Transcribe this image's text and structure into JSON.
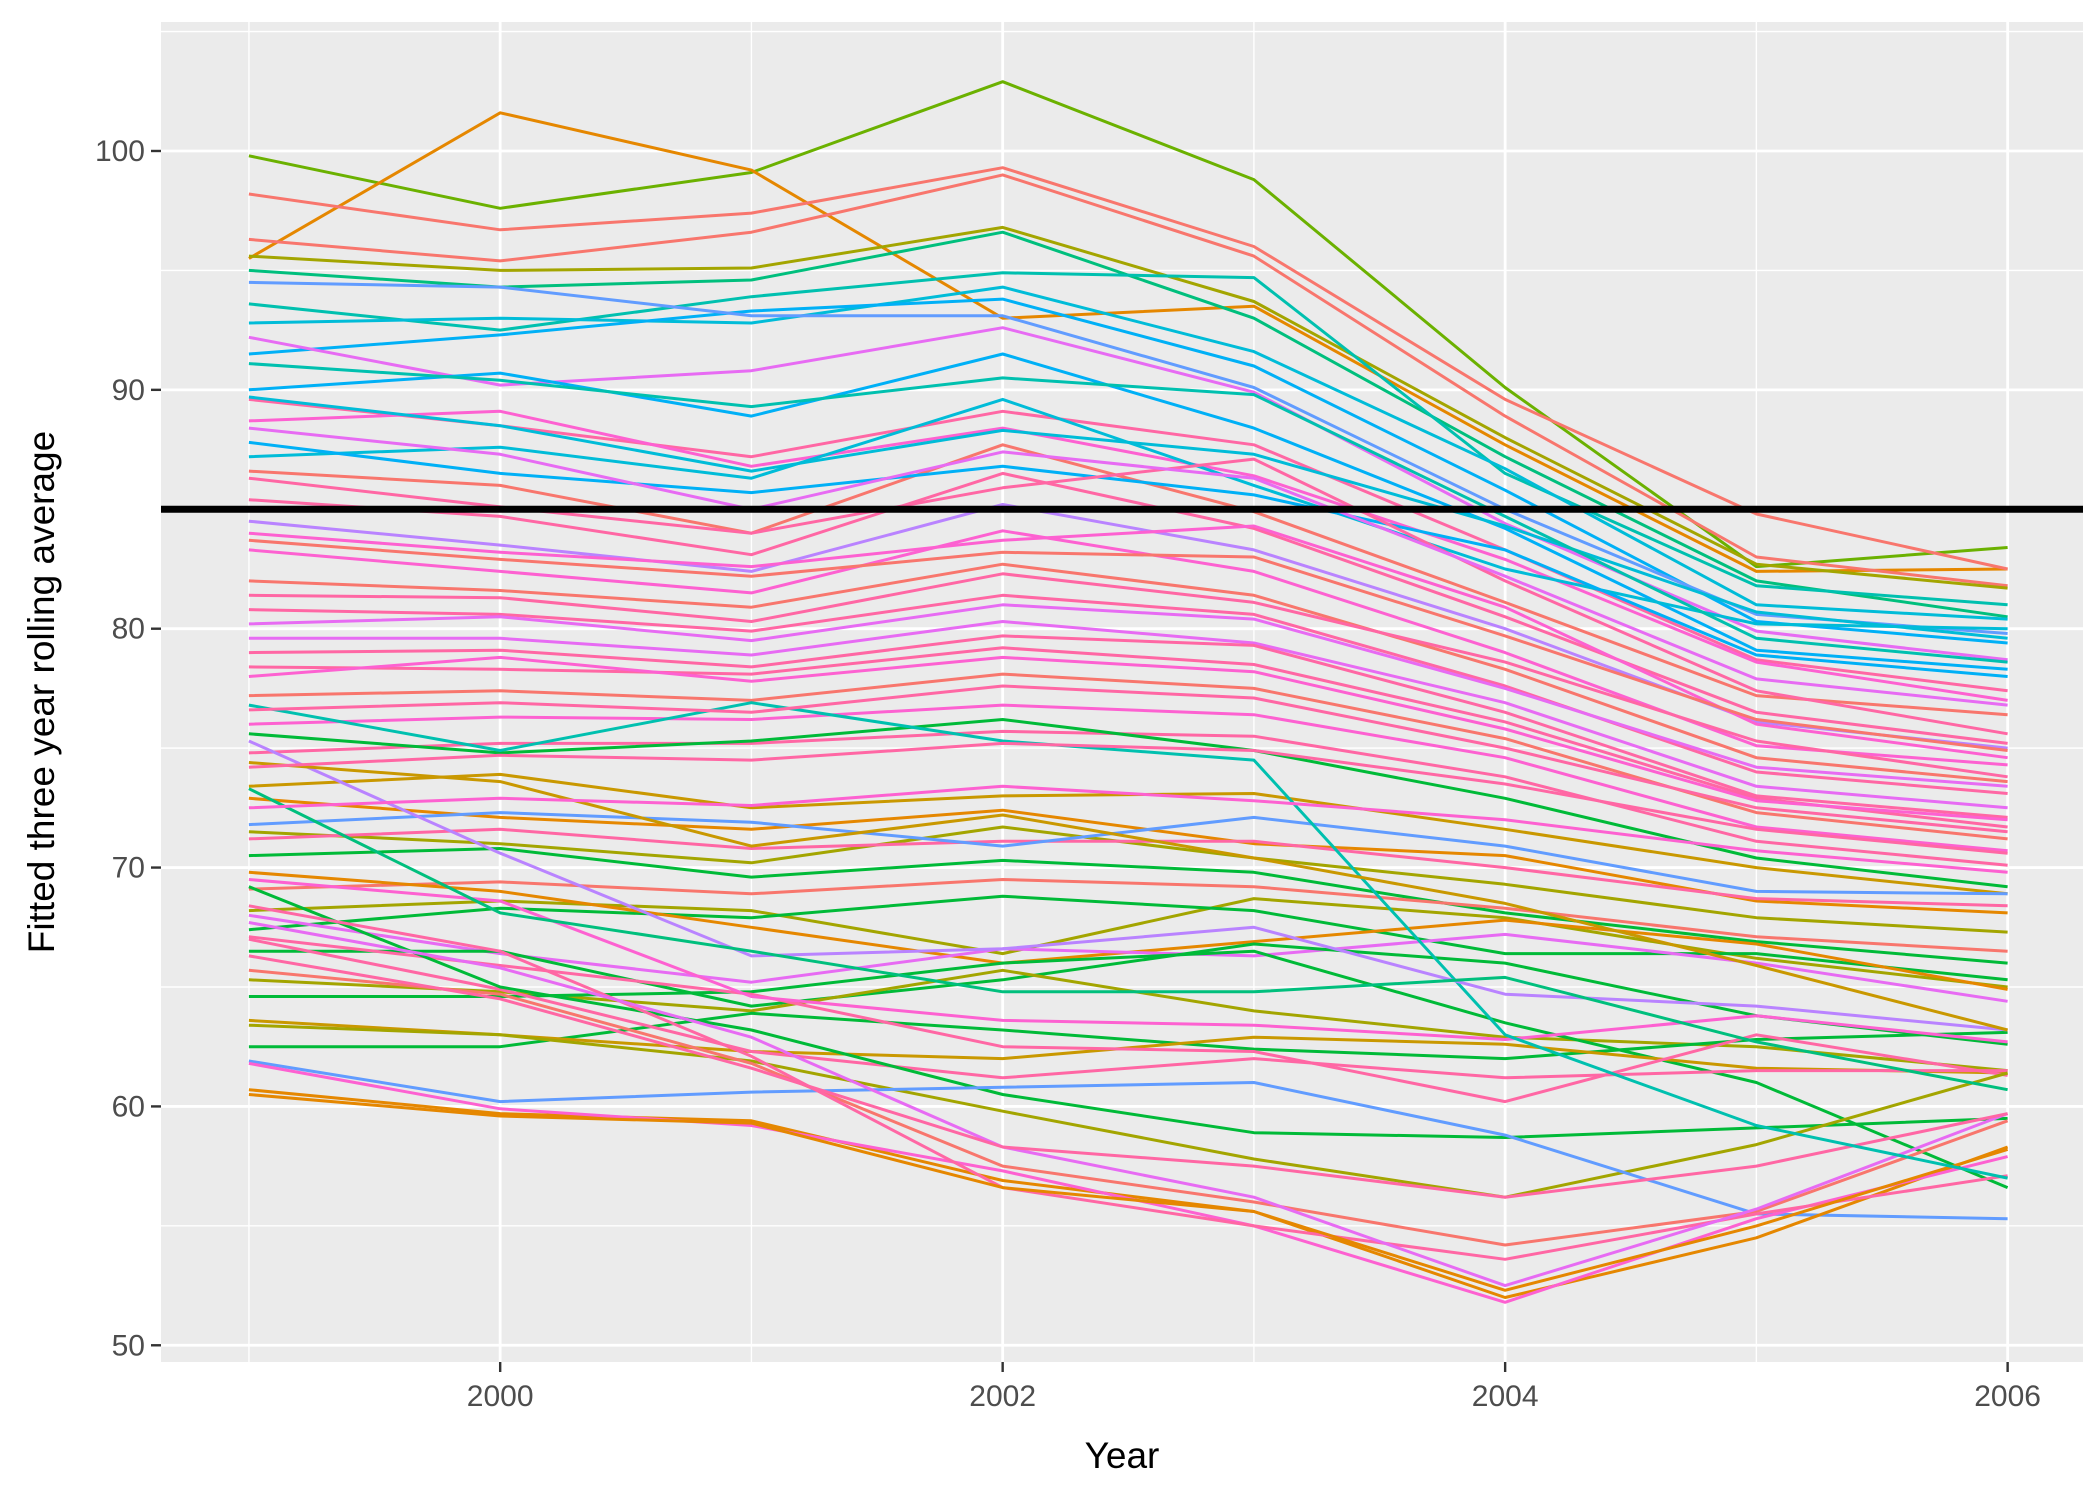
{
  "chart_data": {
    "type": "line",
    "title": "",
    "xlabel": "Year",
    "ylabel": "Fitted three year rolling average",
    "x": [
      1999,
      2000,
      2001,
      2002,
      2003,
      2004,
      2005,
      2006
    ],
    "xlim": [
      1998.65,
      2006.3
    ],
    "ylim": [
      49.3,
      105.4
    ],
    "x_ticks": [
      2000,
      2002,
      2004,
      2006
    ],
    "x_tick_labels": [
      "2000",
      "2002",
      "2004",
      "2006"
    ],
    "y_ticks": [
      50,
      60,
      70,
      80,
      90,
      100
    ],
    "y_tick_labels": [
      "50",
      "60",
      "70",
      "80",
      "90",
      "100"
    ],
    "grid": true,
    "legend": "none",
    "background": "#ebebeb",
    "grid_color": "#ffffff",
    "reference_line": {
      "y": 85,
      "color": "#000000"
    },
    "palette": [
      "#F8766D",
      "#E58700",
      "#C99800",
      "#A3A500",
      "#6BB100",
      "#00BA38",
      "#00BF7D",
      "#00C0AF",
      "#00BCD8",
      "#00B0F6",
      "#619CFF",
      "#B983FF",
      "#E76BF3",
      "#FD61D1",
      "#FF67A4"
    ],
    "series": [
      {
        "color": "#6BB100",
        "values": [
          99.8,
          97.6,
          99.1,
          102.9,
          98.8,
          90.1,
          82.6,
          83.4
        ]
      },
      {
        "color": "#E58700",
        "values": [
          95.5,
          101.6,
          99.2,
          93.0,
          93.5,
          87.7,
          82.4,
          82.5
        ]
      },
      {
        "color": "#F8766D",
        "values": [
          98.2,
          96.7,
          97.4,
          99.3,
          96.0,
          89.6,
          84.8,
          82.5
        ]
      },
      {
        "color": "#F8766D",
        "values": [
          96.3,
          95.4,
          96.6,
          99.0,
          95.6,
          88.9,
          83.0,
          81.8
        ]
      },
      {
        "color": "#A3A500",
        "values": [
          95.6,
          95.0,
          95.1,
          96.8,
          93.7,
          88.0,
          82.7,
          81.7
        ]
      },
      {
        "color": "#00BF7D",
        "values": [
          95.0,
          94.3,
          94.6,
          96.6,
          93.0,
          87.2,
          82.0,
          80.5
        ]
      },
      {
        "color": "#00C0AF",
        "values": [
          93.6,
          92.5,
          93.9,
          94.9,
          94.7,
          86.5,
          81.8,
          81.0
        ]
      },
      {
        "color": "#00BCD8",
        "values": [
          92.8,
          93.0,
          92.8,
          94.3,
          91.6,
          86.7,
          81.0,
          80.4
        ]
      },
      {
        "color": "#00B0F6",
        "values": [
          91.5,
          92.3,
          93.3,
          93.8,
          91.0,
          85.8,
          80.3,
          79.4
        ]
      },
      {
        "color": "#619CFF",
        "values": [
          94.5,
          94.3,
          93.1,
          93.1,
          90.1,
          85.0,
          80.6,
          79.8
        ]
      },
      {
        "color": "#E76BF3",
        "values": [
          92.2,
          90.2,
          90.8,
          92.6,
          89.9,
          84.4,
          79.9,
          78.7
        ]
      },
      {
        "color": "#00B0F6",
        "values": [
          90.0,
          90.7,
          88.9,
          91.5,
          88.4,
          84.2,
          79.1,
          78.3
        ]
      },
      {
        "color": "#FF67A4",
        "values": [
          89.6,
          88.5,
          87.2,
          89.1,
          87.7,
          83.3,
          78.7,
          77.4
        ]
      },
      {
        "color": "#FD61D1",
        "values": [
          88.7,
          89.1,
          86.8,
          88.4,
          86.4,
          82.9,
          78.6,
          77.0
        ]
      },
      {
        "color": "#00BCD8",
        "values": [
          87.2,
          87.6,
          86.3,
          89.6,
          86.0,
          82.5,
          80.2,
          80.0
        ]
      },
      {
        "color": "#F8766D",
        "values": [
          86.6,
          86.0,
          84.0,
          87.7,
          84.9,
          81.1,
          77.2,
          76.4
        ]
      },
      {
        "color": "#FF67A4",
        "values": [
          85.4,
          84.7,
          83.1,
          86.5,
          84.2,
          80.5,
          76.5,
          75.2
        ]
      },
      {
        "color": "#B983FF",
        "values": [
          84.5,
          83.5,
          82.4,
          85.2,
          83.3,
          80.0,
          76.1,
          75.0
        ]
      },
      {
        "color": "#FD61D1",
        "values": [
          83.3,
          82.4,
          81.5,
          84.1,
          82.4,
          79.0,
          75.1,
          74.3
        ]
      },
      {
        "color": "#F8766D",
        "values": [
          82.0,
          81.6,
          80.9,
          82.7,
          81.4,
          78.3,
          74.6,
          73.6
        ]
      },
      {
        "color": "#FF67A4",
        "values": [
          80.8,
          80.6,
          79.9,
          81.4,
          80.6,
          77.6,
          74.0,
          73.1
        ]
      },
      {
        "color": "#E76BF3",
        "values": [
          79.6,
          79.6,
          78.9,
          80.3,
          79.4,
          76.9,
          73.4,
          72.5
        ]
      },
      {
        "color": "#FF67A4",
        "values": [
          78.4,
          78.3,
          78.1,
          79.2,
          78.5,
          76.1,
          72.9,
          71.7
        ]
      },
      {
        "color": "#F8766D",
        "values": [
          77.2,
          77.4,
          77.0,
          78.1,
          77.5,
          75.4,
          72.3,
          71.2
        ]
      },
      {
        "color": "#FD61D1",
        "values": [
          76.0,
          76.3,
          76.2,
          76.8,
          76.4,
          74.6,
          71.7,
          70.7
        ]
      },
      {
        "color": "#FF67A4",
        "values": [
          74.8,
          75.2,
          75.2,
          75.7,
          75.5,
          73.8,
          71.1,
          70.1
        ]
      },
      {
        "color": "#00BA38",
        "values": [
          75.6,
          74.8,
          75.3,
          76.2,
          74.9,
          72.9,
          70.4,
          69.2
        ]
      },
      {
        "color": "#C99800",
        "values": [
          73.4,
          73.9,
          72.5,
          73.0,
          73.1,
          71.6,
          70.0,
          68.9
        ]
      },
      {
        "color": "#E58700",
        "values": [
          72.9,
          72.1,
          71.6,
          72.4,
          71.0,
          70.5,
          68.6,
          68.1
        ]
      },
      {
        "color": "#A3A500",
        "values": [
          71.5,
          71.0,
          70.2,
          71.7,
          70.4,
          69.3,
          67.9,
          67.3
        ]
      },
      {
        "color": "#00BA38",
        "values": [
          70.5,
          70.8,
          69.6,
          70.3,
          69.8,
          68.1,
          66.9,
          66.0
        ]
      },
      {
        "color": "#FF67A4",
        "values": [
          71.2,
          71.6,
          70.8,
          71.1,
          71.1,
          70.0,
          68.7,
          68.4
        ]
      },
      {
        "color": "#619CFF",
        "values": [
          71.8,
          72.3,
          71.9,
          70.9,
          72.1,
          70.9,
          69.0,
          68.9
        ]
      },
      {
        "color": "#F8766D",
        "values": [
          69.1,
          69.4,
          68.9,
          69.5,
          69.2,
          68.3,
          67.1,
          66.5
        ]
      },
      {
        "color": "#A3A500",
        "values": [
          68.2,
          68.6,
          68.2,
          66.4,
          68.7,
          67.9,
          66.2,
          65.0
        ]
      },
      {
        "color": "#00BA38",
        "values": [
          67.4,
          68.3,
          67.9,
          68.8,
          68.2,
          66.4,
          66.4,
          65.3
        ]
      },
      {
        "color": "#E58700",
        "values": [
          69.8,
          69.0,
          67.5,
          66.0,
          66.9,
          67.8,
          66.8,
          64.9
        ]
      },
      {
        "color": "#E76BF3",
        "values": [
          68.0,
          66.4,
          65.2,
          66.6,
          66.3,
          67.2,
          66.0,
          64.4
        ]
      },
      {
        "color": "#00BA38",
        "values": [
          66.5,
          66.5,
          64.2,
          65.3,
          66.8,
          66.0,
          63.8,
          62.6
        ]
      },
      {
        "color": "#A3A500",
        "values": [
          65.3,
          64.8,
          64.0,
          65.7,
          64.0,
          62.9,
          62.5,
          61.5
        ]
      },
      {
        "color": "#00BA38",
        "values": [
          64.6,
          64.6,
          64.8,
          66.0,
          66.5,
          63.5,
          61.0,
          56.6
        ]
      },
      {
        "color": "#00BA38",
        "values": [
          62.5,
          62.5,
          63.9,
          63.2,
          62.4,
          62.0,
          62.8,
          63.1
        ]
      },
      {
        "color": "#C99800",
        "values": [
          63.6,
          63.0,
          62.3,
          62.0,
          62.9,
          62.6,
          61.6,
          61.4
        ]
      },
      {
        "color": "#FF67A4",
        "values": [
          67.1,
          65.9,
          64.7,
          62.5,
          62.3,
          60.2,
          63.0,
          61.3
        ]
      },
      {
        "color": "#FF67A4",
        "values": [
          67.0,
          64.9,
          62.3,
          61.2,
          62.0,
          61.2,
          61.5,
          61.5
        ]
      },
      {
        "color": "#00BA38",
        "values": [
          69.2,
          65.0,
          63.2,
          60.5,
          58.9,
          58.7,
          59.1,
          59.5
        ]
      },
      {
        "color": "#A3A500",
        "values": [
          63.4,
          63.0,
          61.9,
          59.8,
          57.8,
          56.2,
          58.4,
          61.4
        ]
      },
      {
        "color": "#619CFF",
        "values": [
          61.9,
          60.2,
          60.6,
          60.8,
          61.0,
          58.8,
          55.5,
          55.3
        ]
      },
      {
        "color": "#E58700",
        "values": [
          60.7,
          59.7,
          59.4,
          56.9,
          55.6,
          52.0,
          54.5,
          58.3
        ]
      },
      {
        "color": "#FD61D1",
        "values": [
          61.8,
          59.9,
          59.2,
          57.3,
          55.0,
          51.8,
          55.3,
          57.9
        ]
      },
      {
        "color": "#F8766D",
        "values": [
          65.7,
          64.7,
          61.8,
          57.5,
          56.0,
          54.2,
          55.6,
          59.4
        ]
      },
      {
        "color": "#FF67A4",
        "values": [
          68.4,
          66.5,
          62.1,
          56.6,
          55.0,
          53.6,
          55.5,
          57.1
        ]
      },
      {
        "color": "#E58700",
        "values": [
          60.5,
          59.6,
          59.3,
          56.6,
          55.6,
          52.3,
          55.0,
          58.2
        ]
      },
      {
        "color": "#E76BF3",
        "values": [
          67.7,
          65.8,
          62.9,
          58.3,
          56.2,
          52.5,
          55.7,
          59.7
        ]
      },
      {
        "color": "#FF67A4",
        "values": [
          66.3,
          64.5,
          61.6,
          58.3,
          57.5,
          56.2,
          57.5,
          59.7
        ]
      },
      {
        "color": "#FD61D1",
        "values": [
          69.5,
          68.6,
          64.6,
          63.6,
          63.4,
          62.8,
          63.8,
          62.7
        ]
      },
      {
        "color": "#00C0AF",
        "values": [
          76.8,
          74.9,
          76.9,
          75.3,
          74.5,
          63.0,
          59.2,
          57.0
        ]
      },
      {
        "color": "#B983FF",
        "values": [
          75.3,
          70.6,
          66.3,
          66.6,
          67.5,
          64.7,
          64.2,
          63.2
        ]
      },
      {
        "color": "#00BF7D",
        "values": [
          73.3,
          68.1,
          66.5,
          64.8,
          64.8,
          65.4,
          62.7,
          60.7
        ]
      },
      {
        "color": "#C99800",
        "values": [
          74.4,
          73.6,
          70.9,
          72.2,
          70.4,
          68.5,
          65.9,
          63.2
        ]
      },
      {
        "color": "#00BCD8",
        "values": [
          89.7,
          88.5,
          86.6,
          88.3,
          87.3,
          84.3,
          80.7,
          79.6
        ]
      },
      {
        "color": "#00B0F6",
        "values": [
          87.8,
          86.5,
          85.7,
          86.8,
          85.6,
          83.3,
          78.9,
          78.0
        ]
      },
      {
        "color": "#00C0AF",
        "values": [
          91.1,
          90.4,
          89.3,
          90.5,
          89.8,
          84.7,
          79.6,
          78.6
        ]
      },
      {
        "color": "#FF67A4",
        "values": [
          86.3,
          85.1,
          84.0,
          85.9,
          87.1,
          82.0,
          77.4,
          75.6
        ]
      },
      {
        "color": "#FD61D1",
        "values": [
          84.0,
          83.2,
          82.6,
          83.7,
          84.3,
          80.9,
          76.0,
          74.6
        ]
      },
      {
        "color": "#E76BF3",
        "values": [
          88.4,
          87.3,
          85.0,
          87.4,
          86.3,
          82.2,
          77.9,
          76.8
        ]
      },
      {
        "color": "#FF67A4",
        "values": [
          81.4,
          81.3,
          80.3,
          82.3,
          81.1,
          78.6,
          75.3,
          73.8
        ]
      },
      {
        "color": "#FF67A4",
        "values": [
          79.0,
          79.1,
          78.4,
          79.7,
          79.3,
          76.5,
          73.0,
          72.1
        ]
      },
      {
        "color": "#FF67A4",
        "values": [
          76.6,
          76.9,
          76.5,
          77.6,
          77.1,
          75.0,
          72.5,
          71.5
        ]
      },
      {
        "color": "#FF67A4",
        "values": [
          74.2,
          74.7,
          74.5,
          75.2,
          74.9,
          73.5,
          71.6,
          70.6
        ]
      },
      {
        "color": "#FD61D1",
        "values": [
          72.5,
          72.9,
          72.6,
          73.4,
          72.8,
          72.0,
          70.7,
          69.8
        ]
      },
      {
        "color": "#F8766D",
        "values": [
          83.7,
          82.9,
          82.2,
          83.2,
          83.0,
          79.7,
          76.2,
          74.9
        ]
      },
      {
        "color": "#E76BF3",
        "values": [
          80.2,
          80.5,
          79.5,
          81.0,
          80.4,
          77.5,
          74.2,
          73.4
        ]
      },
      {
        "color": "#FD61D1",
        "values": [
          78.0,
          78.8,
          77.8,
          78.8,
          78.2,
          75.8,
          72.8,
          72.0
        ]
      }
    ]
  }
}
